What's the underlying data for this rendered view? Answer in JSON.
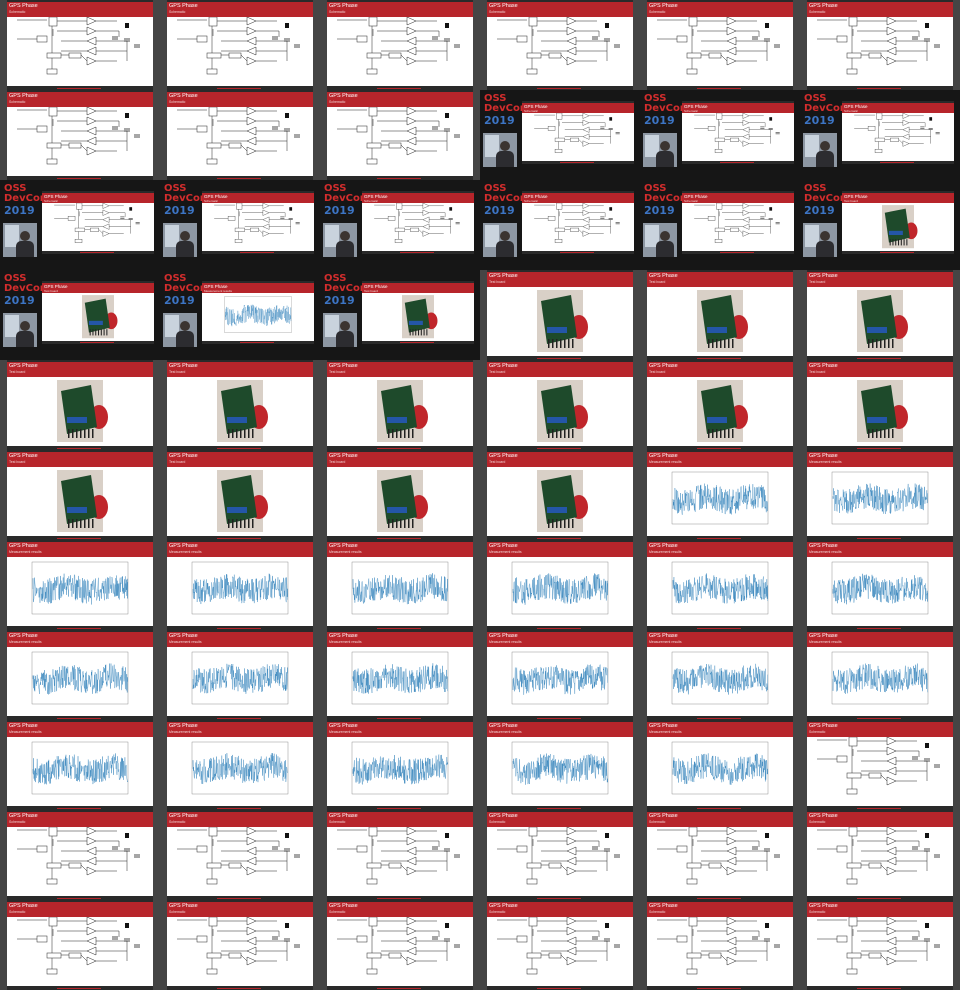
{
  "page": {
    "columns": 6,
    "rows": 11,
    "background": "#454545",
    "accent": "#b7252b",
    "slide_title": "GPS Phase",
    "logo": {
      "line1": "OSS",
      "line2": "DevCon",
      "year": "2019"
    }
  },
  "slide_kinds": {
    "schematic": {
      "subtitle": "Schematic"
    },
    "photo": {
      "subtitle": "Test board"
    },
    "plot": {
      "subtitle": "Measurement results"
    }
  },
  "grid": [
    [
      "schematic",
      "schematic",
      "schematic",
      "schematic",
      "schematic",
      "schematic"
    ],
    [
      "schematic",
      "schematic",
      "schematic",
      "conf-schematic",
      "conf-schematic",
      "conf-schematic"
    ],
    [
      "conf-schematic",
      "conf-schematic",
      "conf-schematic",
      "conf-schematic",
      "conf-schematic",
      "conf-photo"
    ],
    [
      "conf-photo",
      "conf-plot",
      "conf-photo",
      "photo",
      "photo",
      "photo"
    ],
    [
      "photo",
      "photo",
      "photo",
      "photo",
      "photo",
      "photo"
    ],
    [
      "photo",
      "photo",
      "photo",
      "photo",
      "plot",
      "plot"
    ],
    [
      "plot",
      "plot",
      "plot",
      "plot",
      "plot",
      "plot"
    ],
    [
      "plot",
      "plot",
      "plot",
      "plot",
      "plot",
      "plot"
    ],
    [
      "plot",
      "plot",
      "plot",
      "plot",
      "plot",
      "schematic"
    ],
    [
      "schematic",
      "schematic",
      "schematic",
      "schematic",
      "schematic",
      "schematic"
    ],
    [
      "schematic",
      "schematic",
      "schematic",
      "schematic",
      "schematic",
      "schematic"
    ]
  ],
  "plot": {
    "line_color": "#1f77b4",
    "y_ticks": [
      "",
      "",
      "",
      "",
      "",
      ""
    ],
    "x_ticks": [
      "",
      "",
      "",
      "",
      "",
      ""
    ]
  },
  "schematic": {
    "labels": [
      "PRG",
      "CLK 10MHz",
      "Div/N",
      "Phase det",
      "Filter",
      "VCO",
      "Out"
    ]
  }
}
